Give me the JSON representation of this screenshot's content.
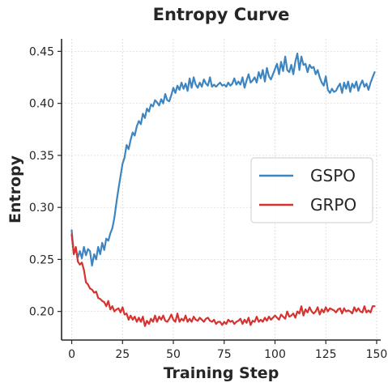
{
  "chart_data": {
    "type": "line",
    "title": "Entropy Curve",
    "xlabel": "Training Step",
    "ylabel": "Entropy",
    "xlim": [
      -5,
      152
    ],
    "ylim": [
      0.1725,
      0.462
    ],
    "xticks": [
      0,
      25,
      50,
      75,
      100,
      125,
      150
    ],
    "yticks": [
      0.2,
      0.25,
      0.3,
      0.35,
      0.4,
      0.45
    ],
    "ytick_labels": [
      "0.20",
      "0.25",
      "0.30",
      "0.35",
      "0.40",
      "0.45"
    ],
    "grid": true,
    "legend_position": "center-right",
    "series": [
      {
        "name": "GSPO",
        "color": "#3d85c0",
        "x": [
          0,
          1,
          2,
          3,
          4,
          5,
          6,
          7,
          8,
          9,
          10,
          11,
          12,
          13,
          14,
          15,
          16,
          17,
          18,
          19,
          20,
          21,
          22,
          23,
          24,
          25,
          26,
          27,
          28,
          29,
          30,
          31,
          32,
          33,
          34,
          35,
          36,
          37,
          38,
          39,
          40,
          41,
          42,
          43,
          44,
          45,
          46,
          47,
          48,
          49,
          50,
          51,
          52,
          53,
          54,
          55,
          56,
          57,
          58,
          59,
          60,
          61,
          62,
          63,
          64,
          65,
          66,
          67,
          68,
          69,
          70,
          71,
          72,
          73,
          74,
          75,
          76,
          77,
          78,
          79,
          80,
          81,
          82,
          83,
          84,
          85,
          86,
          87,
          88,
          89,
          90,
          91,
          92,
          93,
          94,
          95,
          96,
          97,
          98,
          99,
          100,
          101,
          102,
          103,
          104,
          105,
          106,
          107,
          108,
          109,
          110,
          111,
          112,
          113,
          114,
          115,
          116,
          117,
          118,
          119,
          120,
          121,
          122,
          123,
          124,
          125,
          126,
          127,
          128,
          129,
          130,
          131,
          132,
          133,
          134,
          135,
          136,
          137,
          138,
          139,
          140,
          141,
          142,
          143,
          144,
          145,
          146,
          147,
          148,
          149
        ],
        "y": [
          0.278,
          0.255,
          0.26,
          0.252,
          0.258,
          0.251,
          0.262,
          0.254,
          0.26,
          0.258,
          0.244,
          0.255,
          0.25,
          0.262,
          0.255,
          0.266,
          0.259,
          0.27,
          0.268,
          0.275,
          0.28,
          0.29,
          0.305,
          0.318,
          0.33,
          0.342,
          0.348,
          0.36,
          0.356,
          0.365,
          0.372,
          0.369,
          0.378,
          0.383,
          0.38,
          0.39,
          0.386,
          0.395,
          0.392,
          0.399,
          0.397,
          0.403,
          0.401,
          0.398,
          0.404,
          0.4,
          0.409,
          0.403,
          0.402,
          0.408,
          0.415,
          0.41,
          0.417,
          0.413,
          0.42,
          0.414,
          0.419,
          0.412,
          0.424,
          0.415,
          0.425,
          0.418,
          0.415,
          0.42,
          0.416,
          0.423,
          0.419,
          0.417,
          0.425,
          0.416,
          0.418,
          0.416,
          0.418,
          0.42,
          0.417,
          0.418,
          0.416,
          0.42,
          0.417,
          0.419,
          0.424,
          0.418,
          0.421,
          0.418,
          0.425,
          0.415,
          0.422,
          0.428,
          0.42,
          0.422,
          0.425,
          0.42,
          0.43,
          0.424,
          0.432,
          0.421,
          0.434,
          0.426,
          0.423,
          0.428,
          0.433,
          0.438,
          0.428,
          0.44,
          0.431,
          0.445,
          0.432,
          0.43,
          0.437,
          0.428,
          0.44,
          0.448,
          0.432,
          0.445,
          0.437,
          0.438,
          0.43,
          0.437,
          0.434,
          0.435,
          0.428,
          0.432,
          0.425,
          0.42,
          0.417,
          0.426,
          0.413,
          0.41,
          0.414,
          0.411,
          0.412,
          0.416,
          0.419,
          0.41,
          0.42,
          0.414,
          0.421,
          0.411,
          0.419,
          0.415,
          0.421,
          0.412,
          0.418,
          0.422,
          0.416,
          0.419,
          0.413,
          0.42,
          0.425,
          0.43
        ]
      },
      {
        "name": "GRPO",
        "color": "#d6322f",
        "x": [
          0,
          1,
          2,
          3,
          4,
          5,
          6,
          7,
          8,
          9,
          10,
          11,
          12,
          13,
          14,
          15,
          16,
          17,
          18,
          19,
          20,
          21,
          22,
          23,
          24,
          25,
          26,
          27,
          28,
          29,
          30,
          31,
          32,
          33,
          34,
          35,
          36,
          37,
          38,
          39,
          40,
          41,
          42,
          43,
          44,
          45,
          46,
          47,
          48,
          49,
          50,
          51,
          52,
          53,
          54,
          55,
          56,
          57,
          58,
          59,
          60,
          61,
          62,
          63,
          64,
          65,
          66,
          67,
          68,
          69,
          70,
          71,
          72,
          73,
          74,
          75,
          76,
          77,
          78,
          79,
          80,
          81,
          82,
          83,
          84,
          85,
          86,
          87,
          88,
          89,
          90,
          91,
          92,
          93,
          94,
          95,
          96,
          97,
          98,
          99,
          100,
          101,
          102,
          103,
          104,
          105,
          106,
          107,
          108,
          109,
          110,
          111,
          112,
          113,
          114,
          115,
          116,
          117,
          118,
          119,
          120,
          121,
          122,
          123,
          124,
          125,
          126,
          127,
          128,
          129,
          130,
          131,
          132,
          133,
          134,
          135,
          136,
          137,
          138,
          139,
          140,
          141,
          142,
          143,
          144,
          145,
          146,
          147,
          148,
          149
        ],
        "y": [
          0.274,
          0.255,
          0.262,
          0.248,
          0.245,
          0.247,
          0.24,
          0.228,
          0.226,
          0.222,
          0.221,
          0.218,
          0.219,
          0.213,
          0.212,
          0.21,
          0.209,
          0.205,
          0.21,
          0.202,
          0.205,
          0.2,
          0.202,
          0.203,
          0.199,
          0.204,
          0.197,
          0.198,
          0.192,
          0.196,
          0.192,
          0.195,
          0.19,
          0.194,
          0.19,
          0.195,
          0.186,
          0.191,
          0.188,
          0.193,
          0.19,
          0.196,
          0.19,
          0.195,
          0.192,
          0.196,
          0.191,
          0.19,
          0.193,
          0.197,
          0.192,
          0.19,
          0.198,
          0.19,
          0.193,
          0.191,
          0.196,
          0.19,
          0.193,
          0.19,
          0.195,
          0.192,
          0.191,
          0.194,
          0.192,
          0.19,
          0.193,
          0.194,
          0.191,
          0.19,
          0.192,
          0.188,
          0.19,
          0.19,
          0.187,
          0.19,
          0.188,
          0.192,
          0.19,
          0.191,
          0.188,
          0.19,
          0.191,
          0.193,
          0.188,
          0.192,
          0.189,
          0.194,
          0.187,
          0.191,
          0.19,
          0.195,
          0.19,
          0.192,
          0.19,
          0.194,
          0.191,
          0.195,
          0.192,
          0.194,
          0.196,
          0.194,
          0.192,
          0.197,
          0.195,
          0.193,
          0.2,
          0.195,
          0.196,
          0.198,
          0.194,
          0.2,
          0.198,
          0.205,
          0.196,
          0.202,
          0.199,
          0.204,
          0.2,
          0.198,
          0.2,
          0.204,
          0.197,
          0.202,
          0.199,
          0.204,
          0.2,
          0.203,
          0.202,
          0.201,
          0.199,
          0.202,
          0.203,
          0.198,
          0.203,
          0.2,
          0.201,
          0.2,
          0.198,
          0.204,
          0.2,
          0.203,
          0.2,
          0.199,
          0.205,
          0.199,
          0.201,
          0.199,
          0.205,
          0.205
        ]
      }
    ]
  }
}
